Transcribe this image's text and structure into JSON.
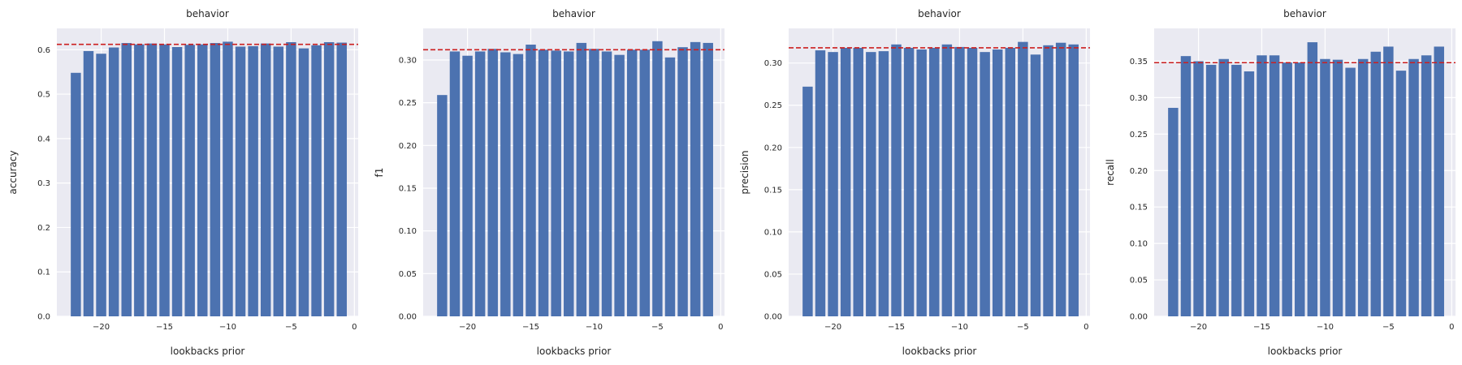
{
  "chart_data": [
    {
      "type": "bar",
      "title": "behavior",
      "xlabel": "lookbacks prior",
      "ylabel": "accuracy",
      "x": [
        -22,
        -21,
        -20,
        -19,
        -18,
        -17,
        -16,
        -15,
        -14,
        -13,
        -12,
        -11,
        -10,
        -9,
        -8,
        -7,
        -6,
        -5,
        -4,
        -3,
        -2,
        -1
      ],
      "values": [
        0.548,
        0.597,
        0.591,
        0.605,
        0.615,
        0.612,
        0.614,
        0.612,
        0.606,
        0.611,
        0.612,
        0.615,
        0.618,
        0.607,
        0.608,
        0.614,
        0.607,
        0.617,
        0.603,
        0.61,
        0.617,
        0.616
      ],
      "reference_line": 0.612,
      "xlim": [
        -23.5,
        0.3
      ],
      "ylim": [
        0,
        0.648
      ],
      "xticks": [
        -20,
        -15,
        -10,
        -5,
        0
      ],
      "xtick_labels": [
        "−20",
        "−15",
        "−10",
        "−5",
        "0"
      ],
      "yticks": [
        0,
        0.1,
        0.2,
        0.3,
        0.4,
        0.5,
        0.6
      ],
      "ytick_labels": [
        "0.0",
        "0.1",
        "0.2",
        "0.3",
        "0.4",
        "0.5",
        "0.6"
      ],
      "grid": true,
      "colors": {
        "bar": "#4c72b0",
        "reference": "#cc1f1f",
        "background": "#eaeaf2"
      }
    },
    {
      "type": "bar",
      "title": "behavior",
      "xlabel": "lookbacks prior",
      "ylabel": "f1",
      "x": [
        -22,
        -21,
        -20,
        -19,
        -18,
        -17,
        -16,
        -15,
        -14,
        -13,
        -12,
        -11,
        -10,
        -9,
        -8,
        -7,
        -6,
        -5,
        -4,
        -3,
        -2,
        -1
      ],
      "values": [
        0.259,
        0.31,
        0.305,
        0.31,
        0.313,
        0.309,
        0.307,
        0.318,
        0.312,
        0.311,
        0.31,
        0.32,
        0.313,
        0.31,
        0.306,
        0.312,
        0.312,
        0.322,
        0.303,
        0.315,
        0.321,
        0.32
      ],
      "reference_line": 0.312,
      "xlim": [
        -23.5,
        0.3
      ],
      "ylim": [
        0,
        0.337
      ],
      "xticks": [
        -20,
        -15,
        -10,
        -5,
        0
      ],
      "xtick_labels": [
        "−20",
        "−15",
        "−10",
        "−5",
        "0"
      ],
      "yticks": [
        0,
        0.05,
        0.1,
        0.15,
        0.2,
        0.25,
        0.3
      ],
      "ytick_labels": [
        "0.00",
        "0.05",
        "0.10",
        "0.15",
        "0.20",
        "0.25",
        "0.30"
      ],
      "grid": true,
      "colors": {
        "bar": "#4c72b0",
        "reference": "#cc1f1f",
        "background": "#eaeaf2"
      }
    },
    {
      "type": "bar",
      "title": "behavior",
      "xlabel": "lookbacks prior",
      "ylabel": "precision",
      "x": [
        -22,
        -21,
        -20,
        -19,
        -18,
        -17,
        -16,
        -15,
        -14,
        -13,
        -12,
        -11,
        -10,
        -9,
        -8,
        -7,
        -6,
        -5,
        -4,
        -3,
        -2,
        -1
      ],
      "values": [
        0.272,
        0.315,
        0.313,
        0.318,
        0.318,
        0.313,
        0.314,
        0.322,
        0.318,
        0.316,
        0.318,
        0.322,
        0.319,
        0.318,
        0.313,
        0.316,
        0.318,
        0.325,
        0.31,
        0.321,
        0.324,
        0.322
      ],
      "reference_line": 0.318,
      "xlim": [
        -23.5,
        0.3
      ],
      "ylim": [
        0,
        0.341
      ],
      "xticks": [
        -20,
        -15,
        -10,
        -5,
        0
      ],
      "xtick_labels": [
        "−20",
        "−15",
        "−10",
        "−5",
        "0"
      ],
      "yticks": [
        0,
        0.05,
        0.1,
        0.15,
        0.2,
        0.25,
        0.3
      ],
      "ytick_labels": [
        "0.00",
        "0.05",
        "0.10",
        "0.15",
        "0.20",
        "0.25",
        "0.30"
      ],
      "grid": true,
      "colors": {
        "bar": "#4c72b0",
        "reference": "#cc1f1f",
        "background": "#eaeaf2"
      }
    },
    {
      "type": "bar",
      "title": "behavior",
      "xlabel": "lookbacks prior",
      "ylabel": "recall",
      "x": [
        -22,
        -21,
        -20,
        -19,
        -18,
        -17,
        -16,
        -15,
        -14,
        -13,
        -12,
        -11,
        -10,
        -9,
        -8,
        -7,
        -6,
        -5,
        -4,
        -3,
        -2,
        -1
      ],
      "values": [
        0.286,
        0.357,
        0.35,
        0.345,
        0.353,
        0.345,
        0.336,
        0.358,
        0.358,
        0.348,
        0.348,
        0.376,
        0.353,
        0.352,
        0.341,
        0.353,
        0.363,
        0.37,
        0.337,
        0.353,
        0.358,
        0.37
      ],
      "reference_line": 0.348,
      "xlim": [
        -23.5,
        0.3
      ],
      "ylim": [
        0,
        0.395
      ],
      "xticks": [
        -20,
        -15,
        -10,
        -5,
        0
      ],
      "xtick_labels": [
        "−20",
        "−15",
        "−10",
        "−5",
        "0"
      ],
      "yticks": [
        0,
        0.05,
        0.1,
        0.15,
        0.2,
        0.25,
        0.3,
        0.35
      ],
      "ytick_labels": [
        "0.00",
        "0.05",
        "0.10",
        "0.15",
        "0.20",
        "0.25",
        "0.30",
        "0.35"
      ],
      "grid": true,
      "colors": {
        "bar": "#4c72b0",
        "reference": "#cc1f1f",
        "background": "#eaeaf2"
      }
    }
  ]
}
